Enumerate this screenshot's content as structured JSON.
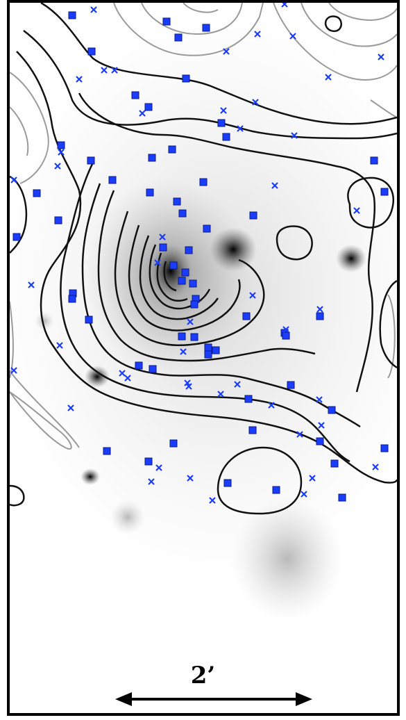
{
  "scale_bar": {
    "label": "2’"
  },
  "colors": {
    "frame": "#000000",
    "contour_main": "#111111",
    "contour_outer": "#9a9a9a",
    "marker": "#1a3cff",
    "background": "#ffffff"
  },
  "legend_markers": {
    "square_icon": "square-marker-icon",
    "cross_icon": "cross-marker-icon"
  }
}
